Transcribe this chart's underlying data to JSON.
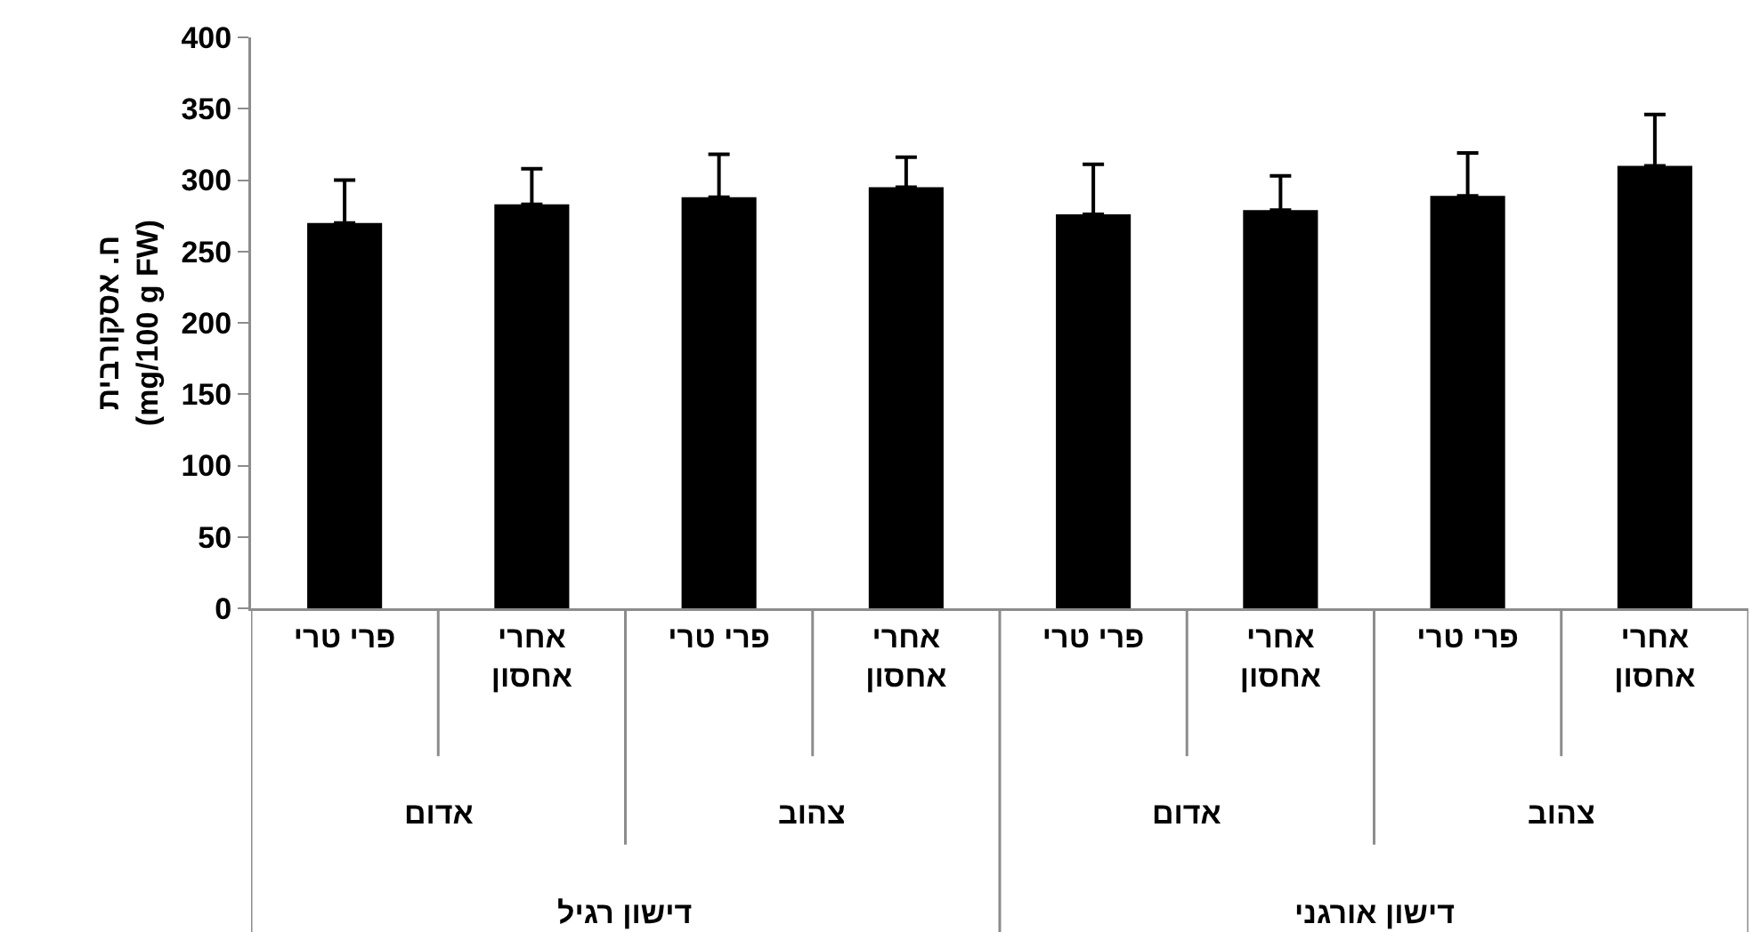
{
  "chart_data": {
    "type": "bar",
    "ylabel": "ח. אסקורבית (mg/100 g FW)",
    "categories": [
      "פרי טרי",
      "אחרי אחסון",
      "פרי טרי",
      "אחרי אחסון",
      "פרי טרי",
      "אחרי אחסון",
      "פרי טרי",
      "אחרי אחסון"
    ],
    "values": [
      270,
      283,
      288,
      295,
      276,
      279,
      289,
      310
    ],
    "errors": [
      [
        270,
        300
      ],
      [
        283,
        308
      ],
      [
        288,
        318
      ],
      [
        295,
        316
      ],
      [
        276,
        311
      ],
      [
        279,
        303
      ],
      [
        289,
        319
      ],
      [
        310,
        346
      ]
    ],
    "color": "#000000",
    "annotations": [
      "אדום",
      "צהוב",
      "אדום",
      "צהוב",
      "דישון רגיל",
      "דישון אורגני"
    ],
    "ylim": [
      0,
      400
    ],
    "yticks": [
      0,
      50,
      100,
      150,
      200,
      250,
      300,
      350,
      400
    ],
    "grid": false,
    "legend": false
  }
}
